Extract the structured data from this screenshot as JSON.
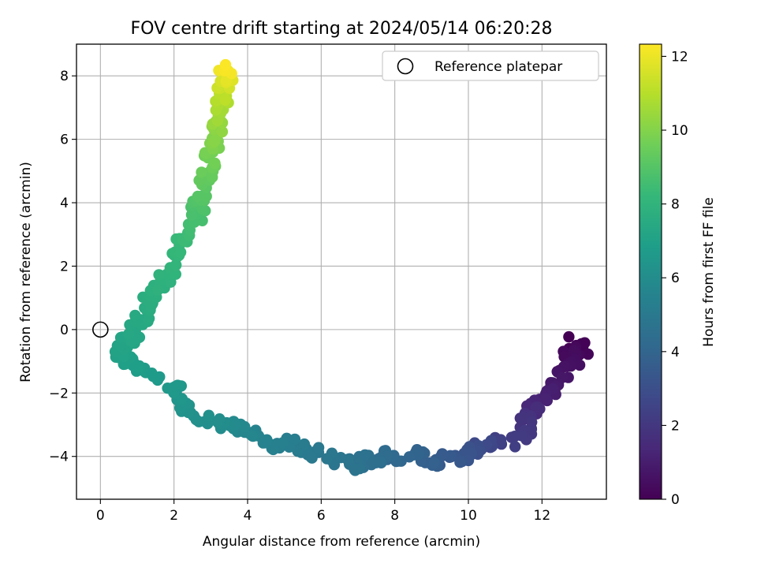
{
  "chart_data": {
    "type": "scatter",
    "title": "FOV centre drift starting at 2024/05/14 06:20:28",
    "xlabel": "Angular distance from reference (arcmin)",
    "ylabel": "Rotation from reference (arcmin)",
    "xlim": [
      -0.65,
      13.75
    ],
    "ylim": [
      -5.35,
      9.0
    ],
    "xticks": [
      0,
      2,
      4,
      6,
      8,
      10,
      12
    ],
    "yticks": [
      -4,
      -2,
      0,
      2,
      4,
      6,
      8
    ],
    "xtick_labels": [
      "0",
      "2",
      "4",
      "6",
      "8",
      "10",
      "12"
    ],
    "ytick_labels": [
      "−4",
      "−2",
      "0",
      "2",
      "4",
      "6",
      "8"
    ],
    "grid": true,
    "legend": {
      "placement": "top-right",
      "entries": [
        "Reference platepar"
      ]
    },
    "reference_point": {
      "x": 0,
      "y": 0
    },
    "colorbar": {
      "label": "Hours from first FF file",
      "colormap": "viridis",
      "range": [
        0,
        12.33
      ],
      "ticks": [
        0,
        2,
        4,
        6,
        8,
        10,
        12
      ],
      "tick_labels": [
        "0",
        "2",
        "4",
        "6",
        "8",
        "10",
        "12"
      ],
      "colors": [
        "#440154",
        "#482878",
        "#3e4989",
        "#31688e",
        "#26828e",
        "#1f9e89",
        "#35b779",
        "#6ece58",
        "#b5de2b",
        "#fde725"
      ]
    },
    "point_path": [
      [
        12.9,
        -0.35,
        0.0
      ],
      [
        13.05,
        -0.65,
        0.15
      ],
      [
        12.6,
        -0.75,
        0.3
      ],
      [
        12.85,
        -1.0,
        0.45
      ],
      [
        12.6,
        -1.35,
        0.65
      ],
      [
        12.35,
        -1.7,
        0.85
      ],
      [
        12.1,
        -2.1,
        1.1
      ],
      [
        11.8,
        -2.35,
        1.35
      ],
      [
        11.75,
        -2.6,
        1.6
      ],
      [
        11.55,
        -2.85,
        1.85
      ],
      [
        11.55,
        -3.3,
        2.05
      ],
      [
        11.05,
        -3.55,
        2.3
      ],
      [
        10.55,
        -3.6,
        2.55
      ],
      [
        10.3,
        -3.7,
        2.8
      ],
      [
        10.05,
        -3.8,
        3.05
      ],
      [
        9.8,
        -4.05,
        3.3
      ],
      [
        9.35,
        -4.1,
        3.5
      ],
      [
        9.0,
        -4.2,
        3.7
      ],
      [
        8.8,
        -3.95,
        3.9
      ],
      [
        8.0,
        -4.0,
        4.1
      ],
      [
        7.7,
        -3.9,
        4.3
      ],
      [
        7.5,
        -4.25,
        4.45
      ],
      [
        7.05,
        -4.1,
        4.6
      ],
      [
        6.75,
        -4.3,
        4.75
      ],
      [
        6.0,
        -3.95,
        4.9
      ],
      [
        5.6,
        -3.85,
        5.05
      ],
      [
        5.25,
        -3.55,
        5.2
      ],
      [
        4.75,
        -3.7,
        5.35
      ],
      [
        4.45,
        -3.4,
        5.5
      ],
      [
        4.0,
        -3.2,
        5.65
      ],
      [
        3.6,
        -3.05,
        5.8
      ],
      [
        3.2,
        -2.95,
        6.0
      ],
      [
        2.8,
        -2.8,
        6.15
      ],
      [
        2.45,
        -2.5,
        6.3
      ],
      [
        2.2,
        -2.05,
        6.45
      ],
      [
        1.85,
        -1.8,
        6.6
      ],
      [
        1.25,
        -1.3,
        6.75
      ],
      [
        0.9,
        -1.1,
        6.9
      ],
      [
        0.6,
        -0.9,
        7.0
      ],
      [
        0.55,
        -0.55,
        7.15
      ],
      [
        0.8,
        -0.3,
        7.25
      ],
      [
        1.0,
        0.05,
        7.35
      ],
      [
        1.15,
        0.5,
        7.5
      ],
      [
        1.3,
        0.85,
        7.65
      ],
      [
        1.55,
        1.3,
        7.8
      ],
      [
        1.8,
        1.75,
        7.95
      ],
      [
        2.1,
        2.45,
        8.15
      ],
      [
        2.35,
        2.9,
        8.35
      ],
      [
        2.55,
        3.45,
        8.6
      ],
      [
        2.65,
        3.85,
        8.8
      ],
      [
        2.7,
        4.25,
        9.0
      ],
      [
        2.85,
        4.7,
        9.25
      ],
      [
        2.95,
        5.15,
        9.5
      ],
      [
        3.05,
        5.6,
        9.75
      ],
      [
        3.1,
        6.0,
        10.0
      ],
      [
        3.15,
        6.4,
        10.3
      ],
      [
        3.25,
        6.9,
        10.65
      ],
      [
        3.3,
        7.3,
        11.0
      ],
      [
        3.3,
        7.7,
        11.4
      ],
      [
        3.45,
        7.95,
        11.8
      ],
      [
        3.4,
        8.35,
        12.3
      ]
    ]
  }
}
